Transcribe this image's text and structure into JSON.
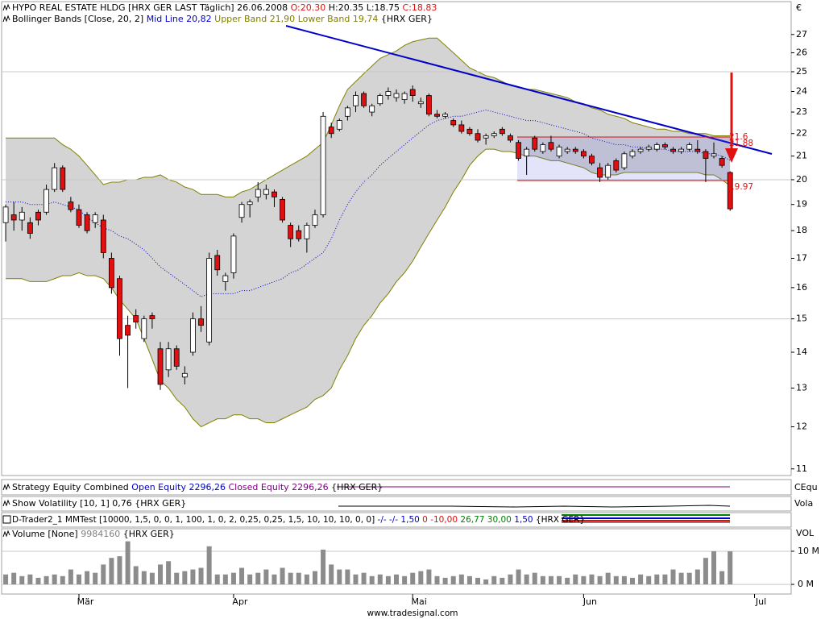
{
  "header": {
    "title": "HYPO REAL ESTATE HLDG [HRX GER LAST Täglich] 26.06.2008",
    "open": "O:20.30",
    "high": "H:20.35",
    "low": "L:18.75",
    "close": "C:18.83"
  },
  "indicator": {
    "name": "Bollinger Bands [Close, 20, 2]",
    "instrument": "{HRX GER}"
  },
  "currency": "€",
  "annotations": [
    "21.6",
    "21.88",
    "19.97"
  ],
  "panels": [
    {
      "parts": [
        "Strategy Equity Combined",
        "Open Equity 2296,26",
        "Closed Equity 2296,26",
        "{HRX GER}"
      ],
      "axis_label": "CEqu"
    },
    {
      "parts": [
        "Show Volatility [10, 1] 0,76 {HRX GER}"
      ],
      "axis_label": "Vola"
    },
    {
      "parts": [
        "D-Trader2_1 MMTest [10000, 1,5, 0, 0, 1, 100, 1, 0, 2, 0,25, 0,25, 1,5, 10, 10, 10, 0, 0]",
        "-/- -/- 1,50",
        "0 -10,00",
        "26,77 30,00",
        "1,50",
        "{HRX GER}"
      ]
    }
  ],
  "footer": "www.tradesignal.com",
  "chart_data": [
    {
      "type": "candlestick",
      "x": [
        0,
        1,
        2,
        3,
        4,
        5,
        6,
        7,
        8,
        9,
        10,
        11,
        12,
        13,
        14,
        15,
        16,
        17,
        18,
        19,
        20,
        21,
        22,
        23,
        24,
        25,
        26,
        27,
        28,
        29,
        30,
        31,
        32,
        33,
        34,
        35,
        36,
        37,
        38,
        39,
        40,
        41,
        42,
        43,
        44,
        45,
        46,
        47,
        48,
        49,
        50,
        51,
        52,
        53,
        54,
        55,
        56,
        57,
        58,
        59,
        60,
        61,
        62,
        63,
        64,
        65,
        66,
        67,
        68,
        69,
        70,
        71,
        72,
        73,
        74,
        75,
        76,
        77,
        78,
        79,
        80,
        81,
        82,
        83,
        84,
        85,
        86,
        87,
        88,
        89
      ],
      "open": [
        18.3,
        18.6,
        18.4,
        18.3,
        18.7,
        18.7,
        19.6,
        20.5,
        19.1,
        18.8,
        18.6,
        18.3,
        18.4,
        17.0,
        16.3,
        14.8,
        15.1,
        14.4,
        15.1,
        14.1,
        13.5,
        14.1,
        13.3,
        14.0,
        15.0,
        14.3,
        17.1,
        16.2,
        16.5,
        18.5,
        19.0,
        19.3,
        19.4,
        19.5,
        19.2,
        18.2,
        18.0,
        17.7,
        18.2,
        18.6,
        22.3,
        22.2,
        22.8,
        23.3,
        23.9,
        23.0,
        23.4,
        23.8,
        23.7,
        23.6,
        24.1,
        23.4,
        23.8,
        22.9,
        22.8,
        22.6,
        22.4,
        22.2,
        22.0,
        21.8,
        21.9,
        22.2,
        21.9,
        21.6,
        21.0,
        21.8,
        21.2,
        21.6,
        21.0,
        21.2,
        21.3,
        21.2,
        21.0,
        20.5,
        20.1,
        20.8,
        20.5,
        21.0,
        21.2,
        21.3,
        21.3,
        21.5,
        21.3,
        21.2,
        21.3,
        21.3,
        21.2,
        21.0,
        20.9,
        20.3
      ],
      "high": [
        19.0,
        19.1,
        18.9,
        18.5,
        18.8,
        19.8,
        20.7,
        20.6,
        19.3,
        19.0,
        18.7,
        18.7,
        18.6,
        17.2,
        16.4,
        15.1,
        15.3,
        15.1,
        15.2,
        14.3,
        14.3,
        14.2,
        13.6,
        15.2,
        15.4,
        17.2,
        17.3,
        16.5,
        17.9,
        19.1,
        19.2,
        19.9,
        19.8,
        19.6,
        19.3,
        18.3,
        18.2,
        18.3,
        18.8,
        23.0,
        22.5,
        22.7,
        23.3,
        24.0,
        24.0,
        23.4,
        23.9,
        24.2,
        24.1,
        24.0,
        24.3,
        23.7,
        23.9,
        23.1,
        23.0,
        22.7,
        22.6,
        22.3,
        22.2,
        22.0,
        22.1,
        22.3,
        22.0,
        21.7,
        21.4,
        21.9,
        21.6,
        21.9,
        21.5,
        21.4,
        21.4,
        21.3,
        21.1,
        20.7,
        20.7,
        20.9,
        21.2,
        21.3,
        21.4,
        21.5,
        21.6,
        21.6,
        21.4,
        21.4,
        21.6,
        21.7,
        21.3,
        21.6,
        21.0,
        20.35
      ],
      "low": [
        17.6,
        18.0,
        18.0,
        17.7,
        18.2,
        18.6,
        19.5,
        19.5,
        18.7,
        18.1,
        17.9,
        18.1,
        17.0,
        15.8,
        13.9,
        13.0,
        14.7,
        14.3,
        14.7,
        12.95,
        13.3,
        13.5,
        13.1,
        13.9,
        14.6,
        14.2,
        16.4,
        15.9,
        16.3,
        18.3,
        18.5,
        19.1,
        19.2,
        18.9,
        18.3,
        17.4,
        17.6,
        17.2,
        18.1,
        18.5,
        21.8,
        22.1,
        22.6,
        23.0,
        23.2,
        22.8,
        23.3,
        23.6,
        23.5,
        23.4,
        23.5,
        23.2,
        22.8,
        22.7,
        22.7,
        22.3,
        22.0,
        21.9,
        21.6,
        21.5,
        21.8,
        21.9,
        21.6,
        20.8,
        20.2,
        21.2,
        21.1,
        21.2,
        20.9,
        21.1,
        21.1,
        20.9,
        20.6,
        19.9,
        20.0,
        20.3,
        20.4,
        20.9,
        21.1,
        21.2,
        21.2,
        21.3,
        21.1,
        21.1,
        21.2,
        21.1,
        19.9,
        20.9,
        20.5,
        18.75
      ],
      "close": [
        18.9,
        18.4,
        18.7,
        17.9,
        18.4,
        19.6,
        20.5,
        19.6,
        18.8,
        18.2,
        18.0,
        18.6,
        17.2,
        16.0,
        14.4,
        14.5,
        14.9,
        15.0,
        15.0,
        13.1,
        14.1,
        13.6,
        13.4,
        15.0,
        14.8,
        17.0,
        16.6,
        16.4,
        17.8,
        19.0,
        19.1,
        19.6,
        19.6,
        19.3,
        18.4,
        17.7,
        17.7,
        18.2,
        18.6,
        22.8,
        22.0,
        22.6,
        23.2,
        23.8,
        23.3,
        23.3,
        23.8,
        24.0,
        23.9,
        23.9,
        23.8,
        23.5,
        22.9,
        22.8,
        22.9,
        22.4,
        22.1,
        22.0,
        21.7,
        21.9,
        22.0,
        22.0,
        21.7,
        20.9,
        21.3,
        21.3,
        21.5,
        21.3,
        21.4,
        21.3,
        21.2,
        21.0,
        20.7,
        20.1,
        20.6,
        20.4,
        21.1,
        21.2,
        21.3,
        21.4,
        21.5,
        21.4,
        21.2,
        21.3,
        21.5,
        21.2,
        20.9,
        21.1,
        20.6,
        18.83
      ],
      "colors": {
        "up": "#ffffff",
        "down": "#e01010",
        "outline": "#000000"
      },
      "series": [
        {
          "name": "Mid Line",
          "value_label": "20,82",
          "color": "#0000cc",
          "values": [
            19.1,
            19.1,
            19.1,
            19.0,
            19.0,
            19.0,
            19.1,
            19.0,
            18.9,
            18.8,
            18.5,
            18.3,
            18.1,
            18.0,
            17.8,
            17.7,
            17.5,
            17.3,
            17.0,
            16.7,
            16.5,
            16.3,
            16.1,
            15.9,
            15.7,
            15.8,
            15.8,
            15.8,
            15.8,
            15.9,
            15.9,
            16.0,
            16.1,
            16.2,
            16.3,
            16.5,
            16.6,
            16.8,
            17.0,
            17.2,
            17.7,
            18.4,
            19.0,
            19.5,
            19.9,
            20.2,
            20.6,
            20.9,
            21.2,
            21.5,
            21.8,
            22.1,
            22.4,
            22.6,
            22.7,
            22.8,
            22.8,
            22.9,
            23.0,
            23.1,
            23.0,
            22.9,
            22.8,
            22.7,
            22.6,
            22.6,
            22.5,
            22.4,
            22.3,
            22.2,
            22.1,
            22.0,
            21.8,
            21.7,
            21.6,
            21.5,
            21.5,
            21.4,
            21.4,
            21.3,
            21.3,
            21.3,
            21.2,
            21.2,
            21.2,
            21.2,
            21.1,
            21.1,
            21.0,
            20.82
          ]
        },
        {
          "name": "Upper Band",
          "value_label": "21,90",
          "color": "#808000",
          "values": [
            21.8,
            21.8,
            21.8,
            21.8,
            21.8,
            21.8,
            21.8,
            21.5,
            21.3,
            21.0,
            20.6,
            20.2,
            19.8,
            19.9,
            19.9,
            20.0,
            20.0,
            20.1,
            20.1,
            20.2,
            20.0,
            19.9,
            19.7,
            19.6,
            19.4,
            19.4,
            19.4,
            19.3,
            19.3,
            19.5,
            19.6,
            19.8,
            20.0,
            20.2,
            20.4,
            20.6,
            20.8,
            21.0,
            21.3,
            21.6,
            22.4,
            23.3,
            24.1,
            24.5,
            24.9,
            25.3,
            25.7,
            25.9,
            26.1,
            26.4,
            26.6,
            26.7,
            26.8,
            26.8,
            26.4,
            26.0,
            25.6,
            25.2,
            25.0,
            24.8,
            24.7,
            24.5,
            24.3,
            24.2,
            24.1,
            24.1,
            24.0,
            23.9,
            23.8,
            23.7,
            23.5,
            23.4,
            23.2,
            23.1,
            22.9,
            22.8,
            22.7,
            22.5,
            22.4,
            22.3,
            22.2,
            22.2,
            22.1,
            22.1,
            22.0,
            22.0,
            22.0,
            21.9,
            21.9,
            21.9
          ]
        },
        {
          "name": "Lower Band",
          "value_label": "19,74",
          "color": "#808000",
          "values": [
            16.3,
            16.3,
            16.3,
            16.2,
            16.2,
            16.2,
            16.3,
            16.4,
            16.4,
            16.5,
            16.4,
            16.4,
            16.3,
            16.0,
            15.6,
            15.3,
            15.0,
            14.4,
            13.8,
            13.2,
            13.0,
            12.7,
            12.5,
            12.2,
            12.0,
            12.1,
            12.2,
            12.2,
            12.3,
            12.3,
            12.2,
            12.2,
            12.1,
            12.1,
            12.2,
            12.3,
            12.4,
            12.5,
            12.7,
            12.8,
            13.0,
            13.5,
            13.9,
            14.4,
            14.8,
            15.1,
            15.5,
            15.8,
            16.2,
            16.5,
            16.9,
            17.4,
            17.9,
            18.4,
            18.9,
            19.5,
            20.0,
            20.6,
            21.0,
            21.3,
            21.3,
            21.2,
            21.2,
            21.1,
            21.0,
            21.0,
            20.9,
            20.8,
            20.8,
            20.7,
            20.6,
            20.5,
            20.3,
            20.2,
            20.2,
            20.2,
            20.3,
            20.3,
            20.3,
            20.3,
            20.3,
            20.3,
            20.3,
            20.3,
            20.3,
            20.3,
            20.2,
            20.2,
            20.0,
            19.74
          ]
        }
      ],
      "band_fill": "#d4d4d4",
      "xlim": [
        -0.5,
        96.5
      ],
      "xticks": [
        {
          "value": 9,
          "label": "Mär"
        },
        {
          "value": 28,
          "label": "Apr"
        },
        {
          "value": 50,
          "label": "Mai"
        },
        {
          "value": 71,
          "label": "Jun"
        },
        {
          "value": 92,
          "label": "Jul"
        }
      ],
      "ylim": [
        10.85,
        28.9
      ],
      "yticks": [
        11,
        12,
        13,
        14,
        15,
        16,
        17,
        18,
        19,
        20,
        21,
        22,
        23,
        24,
        25,
        26,
        27
      ],
      "log_scale": true,
      "ygrid": [
        15,
        20,
        25
      ]
    },
    {
      "type": "bar",
      "title": "Volume [None]",
      "instrument": "{HRX GER}",
      "axis_label": "VOL",
      "color": "#8c8c8c",
      "values": [
        3000000,
        3500000,
        2500000,
        3000000,
        2000000,
        2500000,
        3000000,
        2500000,
        4500000,
        3000000,
        4000000,
        3500000,
        6000000,
        8000000,
        8500000,
        13000000,
        5500000,
        4000000,
        3500000,
        6000000,
        7000000,
        3500000,
        4000000,
        4500000,
        5000000,
        11500000,
        3000000,
        3000000,
        3500000,
        5000000,
        3000000,
        3500000,
        4500000,
        3000000,
        5000000,
        3500000,
        3500000,
        3000000,
        4000000,
        10500000,
        6000000,
        4500000,
        4500000,
        3000000,
        3500000,
        2500000,
        3000000,
        2500000,
        3000000,
        2500000,
        3500000,
        4000000,
        4500000,
        2500000,
        2000000,
        2500000,
        3000000,
        2500000,
        2000000,
        1500000,
        2500000,
        2000000,
        3000000,
        4500000,
        3000000,
        3500000,
        2500000,
        2500000,
        2500000,
        2000000,
        3000000,
        2500000,
        3000000,
        2500000,
        3500000,
        2500000,
        2500000,
        2000000,
        3000000,
        2500000,
        3000000,
        3000000,
        4500000,
        3500000,
        3500000,
        4500000,
        8000000,
        10000000,
        4000000,
        9984160
      ],
      "ylim": [
        -2900000,
        16800000
      ],
      "yticks": [
        {
          "value": 0,
          "label": "0 M"
        },
        {
          "value": 10000000,
          "label": "10 M"
        }
      ],
      "grid": true
    }
  ]
}
